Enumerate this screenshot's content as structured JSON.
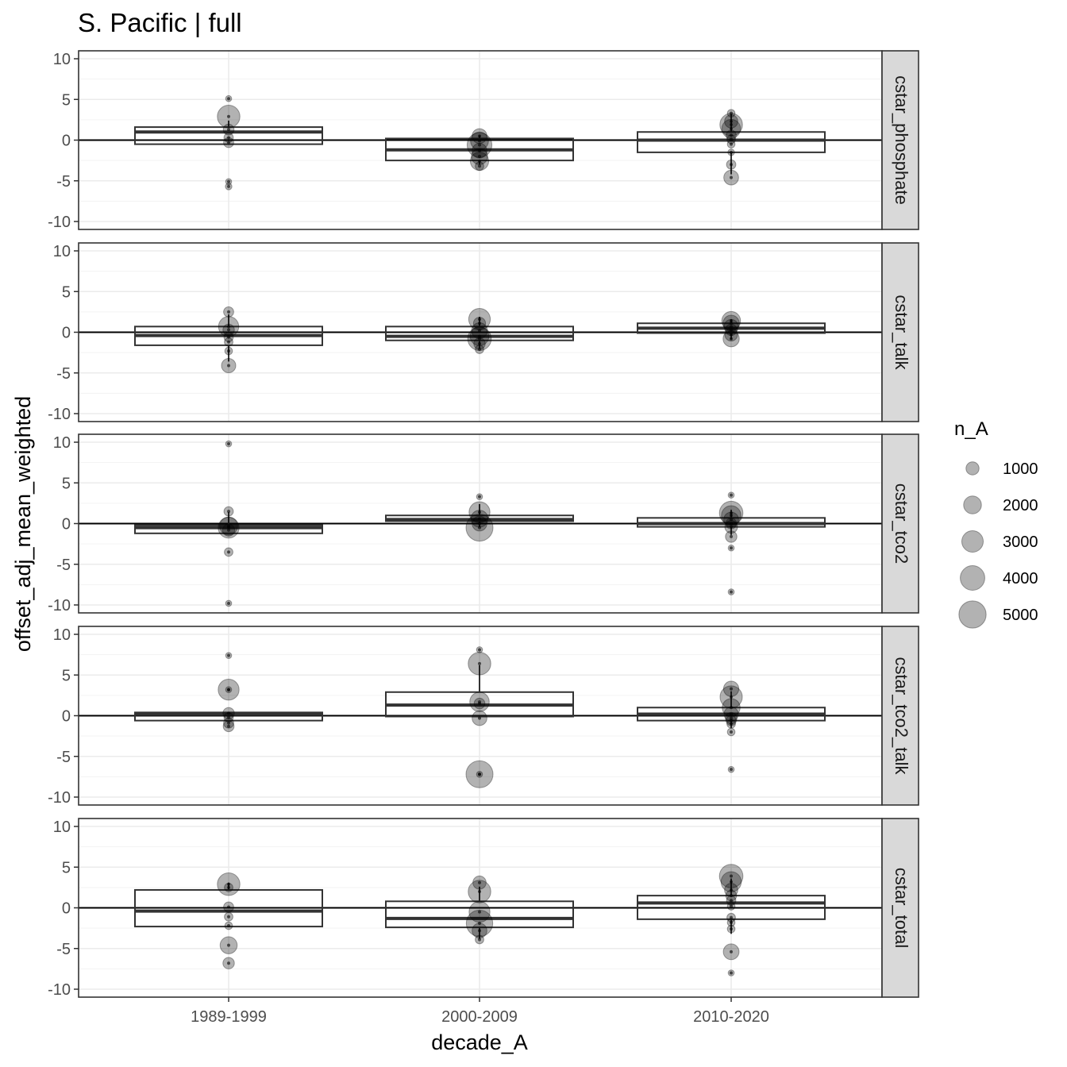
{
  "chart_data": {
    "type": "boxplot-facets",
    "title": "S. Pacific | full",
    "xlabel": "decade_A",
    "ylabel": "offset_adj_mean_weighted",
    "categories": [
      "1989-1999",
      "2000-2009",
      "2010-2020"
    ],
    "ylim": [
      -10,
      10
    ],
    "yticks": [
      10,
      5,
      0,
      -5,
      -10
    ],
    "ytick_labels": [
      "10",
      "5",
      "0",
      "-5",
      "-10"
    ],
    "grid": true,
    "legend": {
      "title": "n_A",
      "position": "right",
      "sizes": [
        1000,
        2000,
        3000,
        4000,
        5000
      ],
      "labels": [
        "1000",
        "2000",
        "3000",
        "4000",
        "5000"
      ]
    },
    "colors": {
      "point": "#000000",
      "box": "#333333",
      "strip": "#d9d9d9",
      "grid": "#ebebeb"
    },
    "facets": [
      {
        "name": "cstar_phosphate",
        "boxes": [
          {
            "q1": -0.5,
            "med": 1.0,
            "q3": 1.6,
            "lo": -0.5,
            "hi": 2.4
          },
          {
            "q1": -2.5,
            "med": -1.2,
            "q3": 0.2,
            "lo": -3.0,
            "hi": 0.6
          },
          {
            "q1": -1.5,
            "med": 0.0,
            "q3": 1.0,
            "lo": -4.2,
            "hi": 3.2
          }
        ],
        "points": [
          {
            "c": 0,
            "y": 5.1,
            "n": 250
          },
          {
            "c": 0,
            "y": 2.9,
            "n": 3500
          },
          {
            "c": 0,
            "y": 1.3,
            "n": 800
          },
          {
            "c": 0,
            "y": 0.3,
            "n": 600
          },
          {
            "c": 0,
            "y": -0.3,
            "n": 700
          },
          {
            "c": 0,
            "y": -5.1,
            "n": 250
          },
          {
            "c": 0,
            "y": -5.7,
            "n": 300
          },
          {
            "c": 1,
            "y": 0.5,
            "n": 1500
          },
          {
            "c": 1,
            "y": -0.1,
            "n": 2200
          },
          {
            "c": 1,
            "y": -0.6,
            "n": 4200
          },
          {
            "c": 1,
            "y": -1.3,
            "n": 1500
          },
          {
            "c": 1,
            "y": -2.0,
            "n": 1800
          },
          {
            "c": 1,
            "y": -2.6,
            "n": 2300
          },
          {
            "c": 1,
            "y": -3.2,
            "n": 500
          },
          {
            "c": 2,
            "y": 3.3,
            "n": 400
          },
          {
            "c": 2,
            "y": 2.3,
            "n": 1200
          },
          {
            "c": 2,
            "y": 1.9,
            "n": 3500
          },
          {
            "c": 2,
            "y": 1.4,
            "n": 2400
          },
          {
            "c": 2,
            "y": 0.6,
            "n": 700
          },
          {
            "c": 2,
            "y": 0.1,
            "n": 500
          },
          {
            "c": 2,
            "y": -0.5,
            "n": 400
          },
          {
            "c": 2,
            "y": -1.5,
            "n": 300
          },
          {
            "c": 2,
            "y": -3.0,
            "n": 600
          },
          {
            "c": 2,
            "y": -4.6,
            "n": 1500
          }
        ]
      },
      {
        "name": "cstar_talk",
        "boxes": [
          {
            "q1": -1.6,
            "med": -0.4,
            "q3": 0.7,
            "lo": -3.6,
            "hi": 2.2
          },
          {
            "q1": -1.0,
            "med": -0.5,
            "q3": 0.7,
            "lo": -2.0,
            "hi": 1.9
          },
          {
            "q1": -0.1,
            "med": 0.5,
            "q3": 1.1,
            "lo": -0.9,
            "hi": 1.6
          }
        ],
        "points": [
          {
            "c": 0,
            "y": 2.5,
            "n": 700
          },
          {
            "c": 0,
            "y": 0.7,
            "n": 2800
          },
          {
            "c": 0,
            "y": 0.3,
            "n": 900
          },
          {
            "c": 0,
            "y": -0.6,
            "n": 600
          },
          {
            "c": 0,
            "y": -1.2,
            "n": 500
          },
          {
            "c": 0,
            "y": -2.3,
            "n": 400
          },
          {
            "c": 0,
            "y": -4.1,
            "n": 1400
          },
          {
            "c": 1,
            "y": 1.6,
            "n": 3200
          },
          {
            "c": 1,
            "y": 1.1,
            "n": 1000
          },
          {
            "c": 1,
            "y": 0.2,
            "n": 1700
          },
          {
            "c": 1,
            "y": -0.5,
            "n": 2400
          },
          {
            "c": 1,
            "y": -0.8,
            "n": 3800
          },
          {
            "c": 1,
            "y": -1.4,
            "n": 900
          },
          {
            "c": 1,
            "y": -2.1,
            "n": 500
          },
          {
            "c": 2,
            "y": 1.4,
            "n": 2400
          },
          {
            "c": 2,
            "y": 1.1,
            "n": 1800
          },
          {
            "c": 2,
            "y": 0.7,
            "n": 1400
          },
          {
            "c": 2,
            "y": 0.3,
            "n": 900
          },
          {
            "c": 2,
            "y": -0.3,
            "n": 1100
          },
          {
            "c": 2,
            "y": -0.8,
            "n": 1800
          }
        ]
      },
      {
        "name": "cstar_tco2",
        "boxes": [
          {
            "q1": -1.2,
            "med": -0.5,
            "q3": -0.2,
            "lo": -1.2,
            "hi": 1.4
          },
          {
            "q1": 0.3,
            "med": 0.5,
            "q3": 1.0,
            "lo": -0.4,
            "hi": 2.4
          },
          {
            "q1": -0.4,
            "med": 0.0,
            "q3": 0.7,
            "lo": -1.4,
            "hi": 1.7
          }
        ],
        "points": [
          {
            "c": 0,
            "y": 9.8,
            "n": 250
          },
          {
            "c": 0,
            "y": 1.5,
            "n": 600
          },
          {
            "c": 0,
            "y": -0.3,
            "n": 2200
          },
          {
            "c": 0,
            "y": -0.5,
            "n": 3000
          },
          {
            "c": 0,
            "y": -0.8,
            "n": 1000
          },
          {
            "c": 0,
            "y": -3.5,
            "n": 500
          },
          {
            "c": 0,
            "y": -9.8,
            "n": 250
          },
          {
            "c": 1,
            "y": 3.3,
            "n": 250
          },
          {
            "c": 1,
            "y": 1.4,
            "n": 3000
          },
          {
            "c": 1,
            "y": 0.6,
            "n": 2000
          },
          {
            "c": 1,
            "y": 0.0,
            "n": 1500
          },
          {
            "c": 1,
            "y": -0.5,
            "n": 5000
          },
          {
            "c": 2,
            "y": 3.5,
            "n": 250
          },
          {
            "c": 2,
            "y": 1.3,
            "n": 3800
          },
          {
            "c": 2,
            "y": 1.0,
            "n": 2600
          },
          {
            "c": 2,
            "y": 0.5,
            "n": 1500
          },
          {
            "c": 2,
            "y": 0.0,
            "n": 800
          },
          {
            "c": 2,
            "y": -0.4,
            "n": 1100
          },
          {
            "c": 2,
            "y": -1.6,
            "n": 900
          },
          {
            "c": 2,
            "y": -3.0,
            "n": 250
          },
          {
            "c": 2,
            "y": -8.4,
            "n": 250
          }
        ]
      },
      {
        "name": "cstar_tco2_talk",
        "boxes": [
          {
            "q1": -0.6,
            "med": 0.2,
            "q3": 0.4,
            "lo": -0.6,
            "hi": 0.4
          },
          {
            "q1": -0.1,
            "med": 1.3,
            "q3": 2.9,
            "lo": -0.1,
            "hi": 6.2
          },
          {
            "q1": -0.6,
            "med": 0.2,
            "q3": 1.0,
            "lo": -1.5,
            "hi": 3.0
          }
        ],
        "points": [
          {
            "c": 0,
            "y": 7.4,
            "n": 250
          },
          {
            "c": 0,
            "y": 3.2,
            "n": 3000
          },
          {
            "c": 0,
            "y": 3.2,
            "n": 250
          },
          {
            "c": 0,
            "y": 0.3,
            "n": 900
          },
          {
            "c": 0,
            "y": -0.2,
            "n": 600
          },
          {
            "c": 0,
            "y": -0.9,
            "n": 700
          },
          {
            "c": 0,
            "y": -1.3,
            "n": 800
          },
          {
            "c": 1,
            "y": 8.1,
            "n": 250
          },
          {
            "c": 1,
            "y": 6.4,
            "n": 3500
          },
          {
            "c": 1,
            "y": 1.7,
            "n": 2600
          },
          {
            "c": 1,
            "y": 1.5,
            "n": 800
          },
          {
            "c": 1,
            "y": -0.3,
            "n": 1500
          },
          {
            "c": 1,
            "y": -7.2,
            "n": 5000
          },
          {
            "c": 1,
            "y": -7.2,
            "n": 250
          },
          {
            "c": 2,
            "y": 3.3,
            "n": 1600
          },
          {
            "c": 2,
            "y": 2.3,
            "n": 3400
          },
          {
            "c": 2,
            "y": 1.0,
            "n": 2200
          },
          {
            "c": 2,
            "y": 0.2,
            "n": 1400
          },
          {
            "c": 2,
            "y": -0.3,
            "n": 900
          },
          {
            "c": 2,
            "y": -0.6,
            "n": 700
          },
          {
            "c": 2,
            "y": -1.0,
            "n": 500
          },
          {
            "c": 2,
            "y": -2.0,
            "n": 400
          },
          {
            "c": 2,
            "y": -6.6,
            "n": 250
          }
        ]
      },
      {
        "name": "cstar_total",
        "boxes": [
          {
            "q1": -2.3,
            "med": -0.4,
            "q3": 2.2,
            "lo": -2.3,
            "hi": 3.1
          },
          {
            "q1": -2.4,
            "med": -1.3,
            "q3": 0.8,
            "lo": -3.8,
            "hi": 2.6
          },
          {
            "q1": -1.4,
            "med": 0.6,
            "q3": 1.5,
            "lo": -3.2,
            "hi": 3.6
          }
        ],
        "points": [
          {
            "c": 0,
            "y": 2.9,
            "n": 3500
          },
          {
            "c": 0,
            "y": 2.5,
            "n": 500
          },
          {
            "c": 0,
            "y": 0.1,
            "n": 700
          },
          {
            "c": 0,
            "y": -1.1,
            "n": 500
          },
          {
            "c": 0,
            "y": -2.2,
            "n": 400
          },
          {
            "c": 0,
            "y": -4.6,
            "n": 2000
          },
          {
            "c": 0,
            "y": -6.8,
            "n": 900
          },
          {
            "c": 1,
            "y": 3.1,
            "n": 1200
          },
          {
            "c": 1,
            "y": 2.0,
            "n": 3500
          },
          {
            "c": 1,
            "y": -0.5,
            "n": 3000
          },
          {
            "c": 1,
            "y": -1.9,
            "n": 4800
          },
          {
            "c": 1,
            "y": -2.8,
            "n": 1500
          },
          {
            "c": 1,
            "y": -3.9,
            "n": 500
          },
          {
            "c": 2,
            "y": 3.9,
            "n": 3800
          },
          {
            "c": 2,
            "y": 3.2,
            "n": 2800
          },
          {
            "c": 2,
            "y": 2.2,
            "n": 1200
          },
          {
            "c": 2,
            "y": 1.5,
            "n": 800
          },
          {
            "c": 2,
            "y": 0.9,
            "n": 600
          },
          {
            "c": 2,
            "y": 0.2,
            "n": 400
          },
          {
            "c": 2,
            "y": -1.2,
            "n": 500
          },
          {
            "c": 2,
            "y": -1.8,
            "n": 400
          },
          {
            "c": 2,
            "y": -2.6,
            "n": 400
          },
          {
            "c": 2,
            "y": -5.4,
            "n": 1700
          },
          {
            "c": 2,
            "y": -8.0,
            "n": 250
          }
        ]
      }
    ]
  }
}
